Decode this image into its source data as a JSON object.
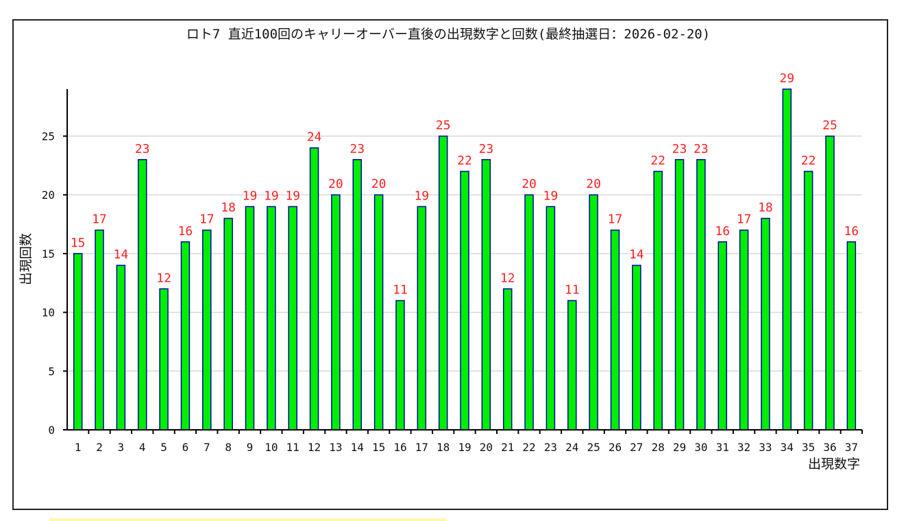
{
  "chart_data": {
    "type": "bar",
    "title": "ロト7 直近100回のキャリーオーバー直後の出現数字と回数(最終抽選日：2026-02-20)",
    "xlabel": "出現数字",
    "ylabel": "出現回数",
    "categories": [
      "1",
      "2",
      "3",
      "4",
      "5",
      "6",
      "7",
      "8",
      "9",
      "10",
      "11",
      "12",
      "13",
      "14",
      "15",
      "16",
      "17",
      "18",
      "19",
      "20",
      "21",
      "22",
      "23",
      "24",
      "25",
      "26",
      "27",
      "28",
      "29",
      "30",
      "31",
      "32",
      "33",
      "34",
      "35",
      "36",
      "37"
    ],
    "values": [
      15,
      17,
      14,
      23,
      12,
      16,
      17,
      18,
      19,
      19,
      19,
      24,
      20,
      23,
      20,
      11,
      19,
      25,
      22,
      23,
      12,
      20,
      19,
      11,
      20,
      17,
      14,
      22,
      23,
      23,
      16,
      17,
      18,
      29,
      22,
      25,
      16
    ],
    "yticks": [
      0,
      5,
      10,
      15,
      20,
      25
    ],
    "ylim": [
      0,
      29
    ],
    "grid": true,
    "colors": {
      "bar_fill": "#00ee00",
      "bar_stroke": "#0000aa",
      "value_label": "#ff2020",
      "grid": "#d8d8d8",
      "axis": "#000000"
    }
  }
}
